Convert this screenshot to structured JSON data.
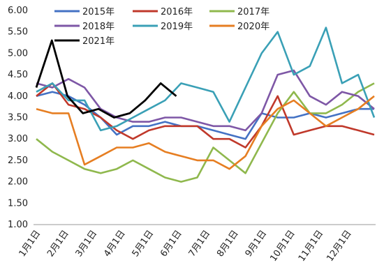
{
  "chart_data": {
    "type": "line",
    "title": "",
    "xlabel": "",
    "ylabel": "",
    "ylim": [
      1.0,
      6.0
    ],
    "y_ticks": [
      "1.00",
      "1.50",
      "2.00",
      "2.50",
      "3.00",
      "3.50",
      "4.00",
      "4.50",
      "5.00",
      "5.50",
      "6.00"
    ],
    "x_ticks": [
      "1月1日",
      "2月1日",
      "3月1日",
      "4月1日",
      "5月1日",
      "6月1日",
      "7月1日",
      "8月1日",
      "9月1日",
      "10月1日",
      "11月1日",
      "12月1日"
    ],
    "grid": false,
    "legend_position": "top",
    "series": [
      {
        "name": "2015年",
        "color": "#4472C4",
        "values": [
          4.0,
          4.1,
          4.0,
          3.8,
          3.5,
          3.1,
          3.3,
          3.3,
          3.4,
          3.3,
          3.3,
          3.2,
          3.1,
          3.0,
          3.6,
          3.5,
          3.5,
          3.6,
          3.5,
          3.6,
          3.7,
          3.7
        ]
      },
      {
        "name": "2016年",
        "color": "#C0392B",
        "values": [
          4.0,
          4.3,
          3.8,
          3.7,
          3.5,
          3.2,
          3.0,
          3.2,
          3.3,
          3.3,
          3.3,
          3.0,
          3.0,
          2.8,
          3.3,
          4.0,
          3.1,
          3.2,
          3.3,
          3.3,
          3.2,
          3.1
        ]
      },
      {
        "name": "2017年",
        "color": "#8FB84D",
        "values": [
          3.0,
          2.7,
          2.5,
          2.3,
          2.2,
          2.3,
          2.5,
          2.3,
          2.1,
          2.0,
          2.1,
          2.8,
          2.5,
          2.2,
          2.9,
          3.6,
          4.1,
          3.6,
          3.6,
          3.8,
          4.1,
          4.3
        ]
      },
      {
        "name": "2018年",
        "color": "#7E57A6",
        "values": [
          4.3,
          4.2,
          4.4,
          4.2,
          3.7,
          3.5,
          3.4,
          3.4,
          3.5,
          3.5,
          3.4,
          3.3,
          3.3,
          3.2,
          3.6,
          4.5,
          4.6,
          4.0,
          3.8,
          4.1,
          4.0,
          3.7
        ]
      },
      {
        "name": "2019年",
        "color": "#3AA0B6",
        "values": [
          4.1,
          4.3,
          3.9,
          3.9,
          3.2,
          3.3,
          3.5,
          3.7,
          3.9,
          4.3,
          4.2,
          4.1,
          3.4,
          4.2,
          5.0,
          5.5,
          4.5,
          4.7,
          5.6,
          4.3,
          4.5,
          3.5
        ]
      },
      {
        "name": "2020年",
        "color": "#E67E22",
        "values": [
          3.7,
          3.6,
          3.6,
          2.4,
          2.6,
          2.8,
          2.8,
          2.9,
          2.7,
          2.6,
          2.5,
          2.5,
          2.3,
          2.6,
          3.3,
          3.7,
          3.9,
          3.6,
          3.3,
          3.5,
          3.7,
          4.0
        ]
      },
      {
        "name": "2021年",
        "color": "#000000",
        "values": [
          4.2,
          5.3,
          4.0,
          3.6,
          3.7,
          3.5,
          3.6,
          3.9,
          4.3,
          4.0
        ]
      }
    ]
  }
}
